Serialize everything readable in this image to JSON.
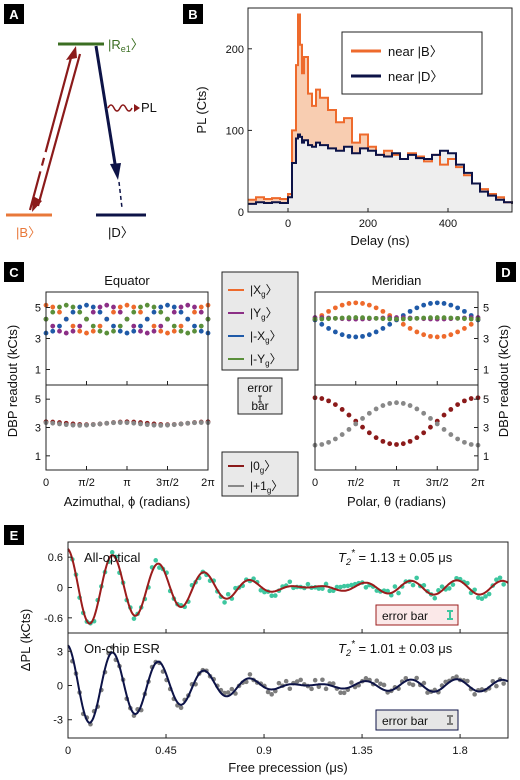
{
  "panels": {
    "A": "A",
    "B": "B",
    "C": "C",
    "D": "D",
    "E": "E"
  },
  "level_diagram": {
    "top_state": "|R",
    "top_sub": "e1",
    "left_state": "|B",
    "right_state": "|D",
    "pl_label": "PL",
    "colors": {
      "dark_red": "#8b1a1a",
      "navy": "#0d1347",
      "green": "#3b6e22",
      "orange": "#e8783a"
    }
  },
  "chart_data": [
    {
      "id": "B",
      "type": "line",
      "xlabel": "Delay (ns)",
      "ylabel": "PL (Cts)",
      "xlim": [
        -100,
        560
      ],
      "ylim": [
        0,
        250
      ],
      "xticks": [
        0,
        200,
        400
      ],
      "yticks": [
        0,
        100,
        200
      ],
      "legend_position": "top-right",
      "series": [
        {
          "name": "near |B",
          "color": "#ee6a2c",
          "fill": "#f8cdb1",
          "x": [
            -100,
            -80,
            -60,
            -40,
            -20,
            0,
            10,
            20,
            25,
            30,
            35,
            40,
            50,
            60,
            70,
            80,
            100,
            120,
            140,
            160,
            180,
            200,
            220,
            240,
            260,
            280,
            300,
            320,
            340,
            360,
            380,
            400,
            420,
            440,
            460,
            480,
            500,
            520,
            540,
            560
          ],
          "y": [
            15,
            18,
            16,
            17,
            16,
            22,
            100,
            180,
            242,
            205,
            170,
            190,
            145,
            130,
            150,
            140,
            125,
            110,
            115,
            85,
            95,
            80,
            70,
            75,
            70,
            65,
            72,
            68,
            62,
            70,
            58,
            65,
            55,
            45,
            35,
            28,
            22,
            18,
            12,
            10
          ]
        },
        {
          "name": "near |D",
          "color": "#0d1347",
          "fill": "#eeeeee",
          "x": [
            -100,
            -80,
            -60,
            -40,
            -20,
            0,
            10,
            20,
            25,
            30,
            35,
            40,
            50,
            60,
            70,
            80,
            100,
            120,
            140,
            160,
            180,
            200,
            220,
            240,
            260,
            280,
            300,
            320,
            340,
            360,
            380,
            400,
            420,
            440,
            460,
            480,
            500,
            520,
            540,
            560
          ],
          "y": [
            10,
            12,
            11,
            12,
            11,
            18,
            60,
            90,
            95,
            92,
            85,
            88,
            82,
            80,
            85,
            82,
            78,
            75,
            80,
            72,
            78,
            75,
            70,
            68,
            72,
            65,
            70,
            66,
            65,
            70,
            75,
            72,
            58,
            48,
            35,
            25,
            20,
            15,
            12,
            10
          ]
        }
      ]
    },
    {
      "id": "C_top",
      "type": "scatter",
      "title": "Equator",
      "ylabel": "DBP readout (kCts)",
      "xlim": [
        0,
        6.2832
      ],
      "ylim": [
        0,
        6
      ],
      "yticks": [
        1,
        3,
        5
      ],
      "series": [
        {
          "name": "|X",
          "sub": "g",
          "color": "#ee6a2c",
          "offset": 4.25,
          "amp": 0.9,
          "phase": 0
        },
        {
          "name": "|Y",
          "sub": "g",
          "color": "#8c2f86",
          "offset": 4.25,
          "amp": 0.9,
          "phase": 1.5708
        },
        {
          "name": "|-X",
          "sub": "g",
          "color": "#1f5aa8",
          "offset": 4.25,
          "amp": 0.9,
          "phase": 3.1416
        },
        {
          "name": "|-Y",
          "sub": "g",
          "color": "#5a8f3a",
          "offset": 4.25,
          "amp": 0.9,
          "phase": 4.7124
        }
      ]
    },
    {
      "id": "C_bottom",
      "type": "scatter",
      "xlabel": "Azimuthal, ϕ (radians)",
      "ylabel": "DBP readout (kCts)",
      "xlim": [
        0,
        6.2832
      ],
      "ylim": [
        0,
        6
      ],
      "yticks": [
        1,
        3,
        5
      ],
      "xticklabels": [
        "0",
        "π/2",
        "π",
        "3π/2",
        "2π"
      ],
      "series": [
        {
          "name": "|0",
          "sub": "g",
          "color": "#8b1a1a",
          "offset": 3.3,
          "amp": 0.1,
          "phase": 0
        },
        {
          "name": "|+1",
          "sub": "g",
          "color": "#888888",
          "offset": 3.25,
          "amp": 0.1,
          "phase": 0.5
        }
      ]
    },
    {
      "id": "D_top",
      "type": "scatter",
      "title": "Meridian",
      "ylabel": "DBP readout (kCts)",
      "xlim": [
        0,
        6.2832
      ],
      "ylim": [
        0,
        6
      ],
      "yticks": [
        1,
        3,
        5
      ],
      "series": [
        {
          "name": "|X",
          "sub": "g",
          "color": "#ee6a2c",
          "offset": 4.2,
          "amp": -1.1,
          "shape": "sinhalf"
        },
        {
          "name": "|-X",
          "sub": "g",
          "color": "#1f5aa8",
          "offset": 4.2,
          "amp": 1.1,
          "shape": "sinhalf"
        },
        {
          "name": "|Y",
          "sub": "g",
          "color": "#8c2f86",
          "offset": 4.3,
          "amp": 0.05,
          "shape": "flat"
        },
        {
          "name": "|-Y",
          "sub": "g",
          "color": "#5a8f3a",
          "offset": 4.3,
          "amp": -0.05,
          "shape": "flat"
        }
      ]
    },
    {
      "id": "D_bottom",
      "type": "scatter",
      "xlabel": "Polar, θ (radians)",
      "ylabel": "DBP readout (kCts)",
      "xlim": [
        0,
        6.2832
      ],
      "ylim": [
        0,
        6
      ],
      "yticks": [
        1,
        3,
        5
      ],
      "xticklabels": [
        "0",
        "π/2",
        "π",
        "3π/2",
        "2π"
      ],
      "series": [
        {
          "name": "|0",
          "sub": "g",
          "color": "#8b1a1a",
          "mid": 3.45,
          "amp": 1.65,
          "sign": 1
        },
        {
          "name": "|+1",
          "sub": "g",
          "color": "#888888",
          "mid": 3.25,
          "amp": 1.5,
          "sign": -1
        }
      ]
    },
    {
      "id": "E_top",
      "type": "line",
      "title": "All-optical",
      "ylabel": "ΔPL (kCts)",
      "xlim": [
        0,
        2.02
      ],
      "ylim": [
        -0.9,
        0.9
      ],
      "yticks": [
        -0.6,
        0,
        0.6
      ],
      "yticklabels": [
        "-0.6",
        "0",
        "0.6"
      ],
      "t2_value": "= 1.13 ± 0.05 μs",
      "fit": {
        "amp": 0.78,
        "T2": 1.13,
        "f1": 5.0,
        "f2": 4.5,
        "color": "#9b1c1c"
      },
      "points_color": "#3ec7a0",
      "error_bar_label": "error bar"
    },
    {
      "id": "E_bottom",
      "type": "line",
      "title": "On-chip ESR",
      "xlabel": "Free precession (μs)",
      "ylabel": "ΔPL (kCts)",
      "xlim": [
        0,
        2.02
      ],
      "ylim": [
        -4.6,
        4.6
      ],
      "yticks": [
        -3,
        0,
        3
      ],
      "yticklabels": [
        "-3",
        "0",
        "3"
      ],
      "xticks": [
        0,
        0.45,
        0.9,
        1.35,
        1.8
      ],
      "xticklabels": [
        "0",
        "0.45",
        "0.9",
        "1.35",
        "1.8"
      ],
      "t2_value": "= 1.01 ± 0.03 μs",
      "fit": {
        "amp": 3.6,
        "T2": 1.01,
        "f1": 5.0,
        "f2": 4.5,
        "color": "#0d1347"
      },
      "points_color": "#7d7d7d",
      "error_bar_label": "error bar"
    }
  ],
  "legend_middle": {
    "error_label_1": "error",
    "error_label_2": "bar"
  },
  "t2_symbol": "T",
  "t2_sub": "2",
  "t2_star": "*"
}
